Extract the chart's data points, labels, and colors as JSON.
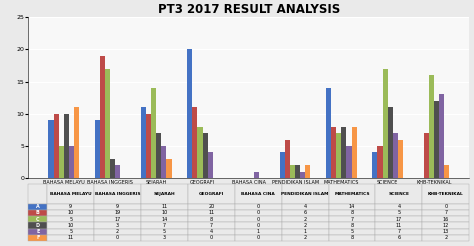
{
  "title": "PT3 2017 RESULT ANALYSIS",
  "categories": [
    "BAHASA MELAYU",
    "BAHASA INGGERIS",
    "SEJARAH",
    "GEOGRAFI",
    "BAHASA CINA",
    "PENDIDIKAN ISLAM",
    "MATHEMATICS",
    "SCIENCE",
    "KHB-TEKNIKAL"
  ],
  "series_order": [
    "A",
    "B",
    "C",
    "D",
    "E",
    "F"
  ],
  "series": {
    "A": [
      9,
      9,
      11,
      20,
      0,
      4,
      14,
      4,
      0
    ],
    "B": [
      10,
      19,
      10,
      11,
      0,
      6,
      8,
      5,
      7
    ],
    "C": [
      5,
      17,
      14,
      8,
      0,
      2,
      7,
      17,
      16
    ],
    "D": [
      10,
      3,
      7,
      7,
      0,
      2,
      8,
      11,
      12
    ],
    "E": [
      5,
      2,
      5,
      4,
      1,
      1,
      5,
      7,
      13
    ],
    "F": [
      11,
      0,
      3,
      0,
      0,
      2,
      8,
      6,
      2
    ]
  },
  "colors": {
    "A": "#4472C4",
    "B": "#BE4B48",
    "C": "#9BBB59",
    "D": "#4F4F4F",
    "E": "#8064A2",
    "F": "#F79646"
  },
  "ylim": [
    0,
    25
  ],
  "yticks": [
    0,
    5,
    10,
    15,
    20,
    25
  ],
  "background_color": "#EAEAEA",
  "plot_bg": "#F8F8F8",
  "title_fontsize": 8.5,
  "bar_width": 0.11
}
